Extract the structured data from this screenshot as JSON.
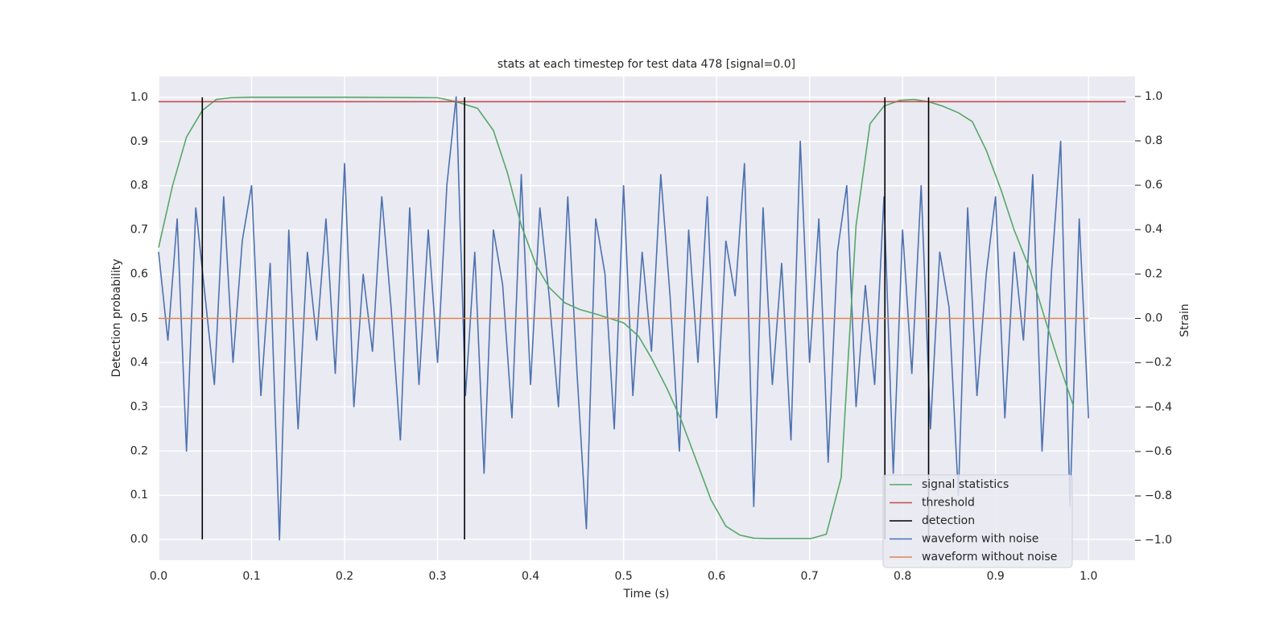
{
  "chart_data": {
    "type": "line",
    "title": "stats at each timestep for test data 478 [signal=0.0]",
    "xlabel": "Time (s)",
    "ylabel": "Detection probability",
    "y2label": "Strain",
    "xlim": [
      0,
      1.05
    ],
    "ylim": [
      -0.047,
      1.047
    ],
    "y2lim": [
      -1.09,
      1.09
    ],
    "xticks": [
      {
        "value": 0,
        "label": "0.0"
      },
      0.1,
      0.2,
      0.3,
      0.4,
      0.5,
      0.6,
      0.7,
      0.8,
      0.9,
      {
        "value": 1,
        "label": "1.0"
      }
    ],
    "yticks": [
      {
        "value": 0,
        "label": "0.0"
      },
      0.1,
      0.2,
      0.3,
      0.4,
      0.5,
      0.6,
      0.7,
      0.8,
      0.9,
      {
        "value": 1,
        "label": "1.0"
      }
    ],
    "y2ticks": [
      {
        "value": -1,
        "label": "−1.0"
      },
      {
        "value": -0.8,
        "label": "−0.8"
      },
      {
        "value": -0.6,
        "label": "−0.6"
      },
      {
        "value": -0.4,
        "label": "−0.4"
      },
      {
        "value": -0.2,
        "label": "−0.2"
      },
      {
        "value": 0,
        "label": "0.0"
      },
      0.2,
      0.4,
      0.6,
      0.8,
      {
        "value": 1,
        "label": "1.0"
      }
    ],
    "grid": true,
    "legend": "lower right",
    "series": [
      {
        "name": "signal statistics",
        "color": "#55a868",
        "x": [
          0,
          0.015,
          0.03,
          0.047,
          0.062,
          0.078,
          0.1,
          0.2,
          0.3,
          0.32,
          0.343,
          0.36,
          0.375,
          0.39,
          0.406,
          0.42,
          0.437,
          0.453,
          0.47,
          0.5,
          0.516,
          0.53,
          0.547,
          0.562,
          0.578,
          0.594,
          0.61,
          0.625,
          0.64,
          0.656,
          0.7,
          0.703,
          0.718,
          0.734,
          0.75,
          0.765,
          0.78,
          0.797,
          0.812,
          0.828,
          0.843,
          0.86,
          0.875,
          0.89,
          0.906,
          0.92,
          0.937,
          0.953,
          0.968,
          0.984
        ],
        "values": [
          0.66,
          0.8,
          0.91,
          0.97,
          0.995,
          0.999,
          1.0,
          1.0,
          0.999,
          0.99,
          0.975,
          0.925,
          0.83,
          0.71,
          0.62,
          0.57,
          0.535,
          0.52,
          0.51,
          0.49,
          0.46,
          0.41,
          0.34,
          0.27,
          0.18,
          0.09,
          0.03,
          0.01,
          0.003,
          0.002,
          0.002,
          0.003,
          0.012,
          0.14,
          0.71,
          0.94,
          0.98,
          0.993,
          0.995,
          0.99,
          0.98,
          0.965,
          0.945,
          0.88,
          0.79,
          0.7,
          0.61,
          0.5,
          0.4,
          0.3
        ]
      },
      {
        "name": "threshold",
        "color": "#c44e52",
        "x": [
          0,
          1.04
        ],
        "values": [
          0.99,
          0.99
        ]
      },
      {
        "name": "detection",
        "color": "#000000",
        "x": [
          0.047,
          0.329,
          0.781,
          0.828
        ],
        "y_range": [
          0,
          1
        ]
      },
      {
        "name": "waveform with noise",
        "color": "#4c72b0",
        "axis": "y2",
        "x": [
          0,
          0.01,
          0.02,
          0.03,
          0.04,
          0.05,
          0.06,
          0.07,
          0.08,
          0.09,
          0.1,
          0.11,
          0.12,
          0.13,
          0.14,
          0.15,
          0.16,
          0.17,
          0.18,
          0.19,
          0.2,
          0.21,
          0.22,
          0.23,
          0.24,
          0.25,
          0.26,
          0.27,
          0.28,
          0.29,
          0.3,
          0.31,
          0.32,
          0.33,
          0.34,
          0.35,
          0.36,
          0.37,
          0.38,
          0.39,
          0.4,
          0.41,
          0.42,
          0.43,
          0.44,
          0.45,
          0.46,
          0.47,
          0.48,
          0.49,
          0.5,
          0.51,
          0.52,
          0.53,
          0.54,
          0.55,
          0.56,
          0.57,
          0.58,
          0.59,
          0.6,
          0.61,
          0.62,
          0.63,
          0.64,
          0.65,
          0.66,
          0.67,
          0.68,
          0.69,
          0.7,
          0.71,
          0.72,
          0.73,
          0.74,
          0.75,
          0.76,
          0.77,
          0.78,
          0.79,
          0.8,
          0.81,
          0.82,
          0.83,
          0.84,
          0.85,
          0.86,
          0.87,
          0.88,
          0.89,
          0.9,
          0.91,
          0.92,
          0.93,
          0.94,
          0.95,
          0.96,
          0.97,
          0.98,
          0.99,
          1.0
        ],
        "values": [
          0.3,
          -0.1,
          0.45,
          -0.6,
          0.5,
          0.1,
          -0.3,
          0.55,
          -0.2,
          0.35,
          0.6,
          -0.35,
          0.25,
          -1.0,
          0.4,
          -0.5,
          0.3,
          -0.1,
          0.45,
          -0.25,
          0.7,
          -0.4,
          0.2,
          -0.15,
          0.55,
          0.05,
          -0.55,
          0.5,
          -0.3,
          0.4,
          -0.2,
          0.6,
          1.0,
          -0.35,
          0.3,
          -0.7,
          0.4,
          0.15,
          -0.45,
          0.65,
          -0.3,
          0.5,
          0.1,
          -0.4,
          0.55,
          -0.25,
          -0.95,
          0.45,
          0.2,
          -0.5,
          0.6,
          -0.35,
          0.3,
          -0.15,
          0.65,
          0.1,
          -0.6,
          0.4,
          -0.2,
          0.55,
          -0.45,
          0.35,
          0.1,
          0.7,
          -0.85,
          0.5,
          -0.3,
          0.25,
          -0.55,
          0.8,
          -0.2,
          0.45,
          -0.65,
          0.3,
          0.6,
          -0.4,
          0.15,
          -0.3,
          0.55,
          -0.7,
          0.4,
          -0.25,
          0.6,
          -0.5,
          0.3,
          0.05,
          -0.8,
          0.5,
          -0.35,
          0.2,
          0.55,
          -0.45,
          0.3,
          -0.1,
          0.65,
          -0.6,
          0.2,
          0.8,
          -0.85,
          0.45,
          -0.45
        ]
      },
      {
        "name": "waveform without noise",
        "color": "#dd8452",
        "axis": "y2",
        "x": [
          0,
          1
        ],
        "values": [
          0,
          0
        ]
      }
    ]
  }
}
